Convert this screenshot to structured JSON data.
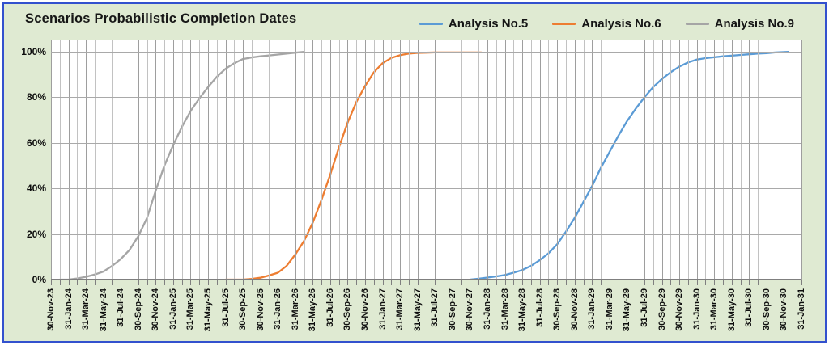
{
  "title": "Scenarios Probabilistic Completion Dates",
  "colors": {
    "frame_border": "#3351ce",
    "background": "#dfead2",
    "plot_background": "#ffffff",
    "gridline_minor": "#c2c2c2",
    "gridline_major": "#9e9e9e",
    "axis_line": "#7f7f7f",
    "series_blue": "#5b9bd5",
    "series_orange": "#ed7d31",
    "series_gray": "#a5a5a5"
  },
  "chart_data": {
    "type": "line",
    "title": "Scenarios Probabilistic Completion Dates",
    "xlabel": "",
    "ylabel": "",
    "legend_position": "top-right",
    "grid": "monthly vertical gridlines; horizontal gridlines every 20%",
    "y_ticks": [
      "0%",
      "20%",
      "40%",
      "60%",
      "80%",
      "100%"
    ],
    "y_gridline_pcts": [
      0,
      20,
      40,
      60,
      80,
      100
    ],
    "ylim_pct": [
      0,
      100
    ],
    "y_max_display": 105,
    "x_months_total": 86,
    "x_month_zero": "30-Nov-23",
    "x_tick_every_months": 2,
    "x_tick_labels": [
      "30-Nov-23",
      "31-Jan-24",
      "31-Mar-24",
      "31-May-24",
      "31-Jul-24",
      "30-Sep-24",
      "30-Nov-24",
      "31-Jan-25",
      "31-Mar-25",
      "31-May-25",
      "31-Jul-25",
      "30-Sep-25",
      "30-Nov-25",
      "31-Jan-26",
      "31-Mar-26",
      "31-May-26",
      "31-Jul-26",
      "30-Sep-26",
      "30-Nov-26",
      "31-Jan-27",
      "31-Mar-27",
      "31-May-27",
      "31-Jul-27",
      "30-Sep-27",
      "30-Nov-27",
      "31-Jan-28",
      "31-Mar-28",
      "31-May-28",
      "31-Jul-28",
      "30-Sep-28",
      "30-Nov-28",
      "31-Jan-29",
      "31-Mar-29",
      "31-May-29",
      "31-Jul-29",
      "30-Sep-29",
      "30-Nov-29",
      "31-Jan-30",
      "31-Mar-30",
      "31-May-30",
      "31-Jul-30",
      "30-Sep-30",
      "30-Nov-30",
      "31-Jan-31"
    ],
    "series": [
      {
        "name": "Analysis No.5",
        "color": "#5b9bd5",
        "points_months_pct": [
          [
            48,
            0
          ],
          [
            49,
            0.4
          ],
          [
            50,
            0.9
          ],
          [
            51,
            1.4
          ],
          [
            52,
            2
          ],
          [
            53,
            3
          ],
          [
            54,
            4.2
          ],
          [
            55,
            6
          ],
          [
            56,
            8.5
          ],
          [
            57,
            11.5
          ],
          [
            58,
            15.5
          ],
          [
            59,
            21
          ],
          [
            60,
            27
          ],
          [
            61,
            34
          ],
          [
            62,
            41
          ],
          [
            63,
            49
          ],
          [
            64,
            56
          ],
          [
            65,
            63
          ],
          [
            66,
            69.5
          ],
          [
            67,
            75
          ],
          [
            68,
            80
          ],
          [
            69,
            84.5
          ],
          [
            70,
            88
          ],
          [
            71,
            91
          ],
          [
            72,
            93.5
          ],
          [
            73,
            95.3
          ],
          [
            74,
            96.6
          ],
          [
            75,
            97.2
          ],
          [
            76,
            97.6
          ],
          [
            77,
            98
          ],
          [
            78,
            98.3
          ],
          [
            79,
            98.6
          ],
          [
            80,
            98.9
          ],
          [
            81,
            99.2
          ],
          [
            82,
            99.4
          ],
          [
            83,
            99.7
          ],
          [
            84,
            99.9
          ],
          [
            84.5,
            100
          ]
        ]
      },
      {
        "name": "Analysis No.6",
        "color": "#ed7d31",
        "points_months_pct": [
          [
            20,
            0
          ],
          [
            21,
            0
          ],
          [
            22,
            0
          ],
          [
            23,
            0.3
          ],
          [
            24,
            0.8
          ],
          [
            25,
            1.8
          ],
          [
            26,
            3
          ],
          [
            27,
            6
          ],
          [
            28,
            11
          ],
          [
            29,
            17
          ],
          [
            30,
            25
          ],
          [
            31,
            35
          ],
          [
            32,
            46
          ],
          [
            33,
            58
          ],
          [
            34,
            69
          ],
          [
            35,
            78
          ],
          [
            36,
            85
          ],
          [
            37,
            91
          ],
          [
            38,
            95
          ],
          [
            39,
            97.3
          ],
          [
            40,
            98.5
          ],
          [
            41,
            99.2
          ],
          [
            42,
            99.5
          ],
          [
            43,
            99.6
          ],
          [
            44,
            99.7
          ],
          [
            45,
            99.7
          ],
          [
            46,
            99.7
          ],
          [
            47,
            99.7
          ],
          [
            48,
            99.7
          ],
          [
            49,
            99.7
          ],
          [
            49.3,
            99.7
          ]
        ]
      },
      {
        "name": "Analysis No.9",
        "color": "#a5a5a5",
        "points_months_pct": [
          [
            1,
            0
          ],
          [
            2,
            0
          ],
          [
            3,
            0.5
          ],
          [
            4,
            1.2
          ],
          [
            5,
            2.2
          ],
          [
            6,
            3.5
          ],
          [
            7,
            6
          ],
          [
            8,
            9
          ],
          [
            9,
            13
          ],
          [
            10,
            19
          ],
          [
            11,
            27
          ],
          [
            12,
            39
          ],
          [
            13,
            50
          ],
          [
            14,
            59
          ],
          [
            15,
            67
          ],
          [
            16,
            74
          ],
          [
            17,
            79.5
          ],
          [
            18,
            84.5
          ],
          [
            19,
            89
          ],
          [
            20,
            92.5
          ],
          [
            21,
            95
          ],
          [
            22,
            96.8
          ],
          [
            23,
            97.5
          ],
          [
            24,
            98
          ],
          [
            25,
            98.4
          ],
          [
            26,
            98.8
          ],
          [
            27,
            99.2
          ],
          [
            28,
            99.6
          ],
          [
            29,
            100
          ]
        ]
      }
    ]
  }
}
